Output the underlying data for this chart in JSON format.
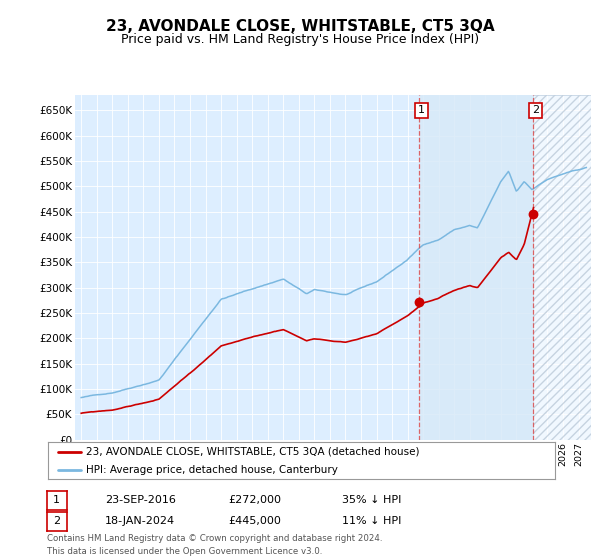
{
  "title": "23, AVONDALE CLOSE, WHITSTABLE, CT5 3QA",
  "subtitle": "Price paid vs. HM Land Registry's House Price Index (HPI)",
  "title_fontsize": 11,
  "subtitle_fontsize": 9,
  "ylabel_ticks": [
    "£0",
    "£50K",
    "£100K",
    "£150K",
    "£200K",
    "£250K",
    "£300K",
    "£350K",
    "£400K",
    "£450K",
    "£500K",
    "£550K",
    "£600K",
    "£650K"
  ],
  "ylim": [
    0,
    680000
  ],
  "ytick_vals": [
    0,
    50000,
    100000,
    150000,
    200000,
    250000,
    300000,
    350000,
    400000,
    450000,
    500000,
    550000,
    600000,
    650000
  ],
  "hpi_color": "#7bb8e0",
  "price_color": "#cc0000",
  "bg_color": "#ddeeff",
  "plot_bg": "#ddeeff",
  "shade_between_color": "#d0e8f8",
  "hatch_color": "#aabbcc",
  "sale1_x": 2016.708,
  "sale1_price": 272000,
  "sale2_x": 2024.042,
  "sale2_price": 445000,
  "legend_property_label": "23, AVONDALE CLOSE, WHITSTABLE, CT5 3QA (detached house)",
  "legend_hpi_label": "HPI: Average price, detached house, Canterbury",
  "annotation1": [
    "1",
    "23-SEP-2016",
    "£272,000",
    "35% ↓ HPI"
  ],
  "annotation2": [
    "2",
    "18-JAN-2024",
    "£445,000",
    "11% ↓ HPI"
  ],
  "footer": "Contains HM Land Registry data © Crown copyright and database right 2024.\nThis data is licensed under the Open Government Licence v3.0."
}
